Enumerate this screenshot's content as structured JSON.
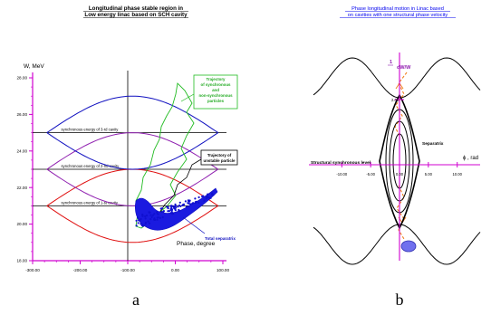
{
  "chart_data": [
    {
      "type": "line",
      "title_lines": [
        "Longitudinal phase stable region in",
        "Low energy linac based on SCH cavity"
      ],
      "ylabel": "W, MeV",
      "xlabel": "Phase, degree",
      "xlim": [
        -300,
        100
      ],
      "ylim": [
        18,
        28
      ],
      "x_ticks": [
        "-300.00",
        "-200.00",
        "-100.00",
        "0.00",
        "100.00"
      ],
      "x_tick_values": [
        -300,
        -200,
        -100,
        0,
        100
      ],
      "y_ticks": [
        "18.00",
        "20.00",
        "22.00",
        "24.00",
        "26.00",
        "28.00"
      ],
      "y_tick_values": [
        18,
        20,
        22,
        24,
        26,
        28
      ],
      "synchronous_levels": [
        {
          "label": "synchronous energy of 1-st cavity",
          "energy": 21.0
        },
        {
          "label": "synchronous energy of 2-nd cavity",
          "energy": 23.0
        },
        {
          "label": "synchronous energy of 3-rd cavity",
          "energy": 25.0
        }
      ],
      "separatrices": [
        {
          "color": "#e01010",
          "center": 21.0,
          "half_height": 2.0,
          "x_from": -270,
          "x_to": 90
        },
        {
          "color": "#9020b0",
          "center": 23.0,
          "half_height": 2.0,
          "x_from": -270,
          "x_to": 90
        },
        {
          "color": "#1010c0",
          "center": 25.0,
          "half_height": 2.0,
          "x_from": -270,
          "x_to": 90
        }
      ],
      "annotations": [
        {
          "label_lines": [
            "Trajectory",
            "of synchronous",
            "and",
            "non-synchronous",
            "particles"
          ],
          "color": "#22aa22"
        },
        {
          "label_lines": [
            "Trajectory of",
            "unstable particle"
          ],
          "color": "#000000"
        },
        {
          "label": "Total separatrix",
          "color": "#1010c0"
        }
      ],
      "panel_label": "a"
    },
    {
      "type": "line",
      "title_lines": [
        "Phase longitudinal motion in Linac based",
        "on cavities with one structural  phase velocity"
      ],
      "ylabel": "dW/W",
      "ylabel_prefix": "1",
      "xlabel": "ϕ , rad",
      "xlim": [
        -13.5,
        13.5
      ],
      "x_ticks": [
        "-10.00",
        "-5.00",
        "0.00",
        "5.00",
        "10.00"
      ],
      "x_tick_values": [
        -10,
        -5,
        0,
        5,
        10
      ],
      "y_ticks": [
        "2.00"
      ],
      "level_label": "Structural synchronous level",
      "separatrix_label": "Separatrix",
      "panel_label": "b"
    }
  ],
  "colors": {
    "axis_magenta": "#d000d0",
    "title_blue": "#0000ee",
    "orange": "#f08020",
    "green": "#22bb22",
    "blue": "#1010c0",
    "purple": "#9020b0",
    "red": "#e01010"
  }
}
